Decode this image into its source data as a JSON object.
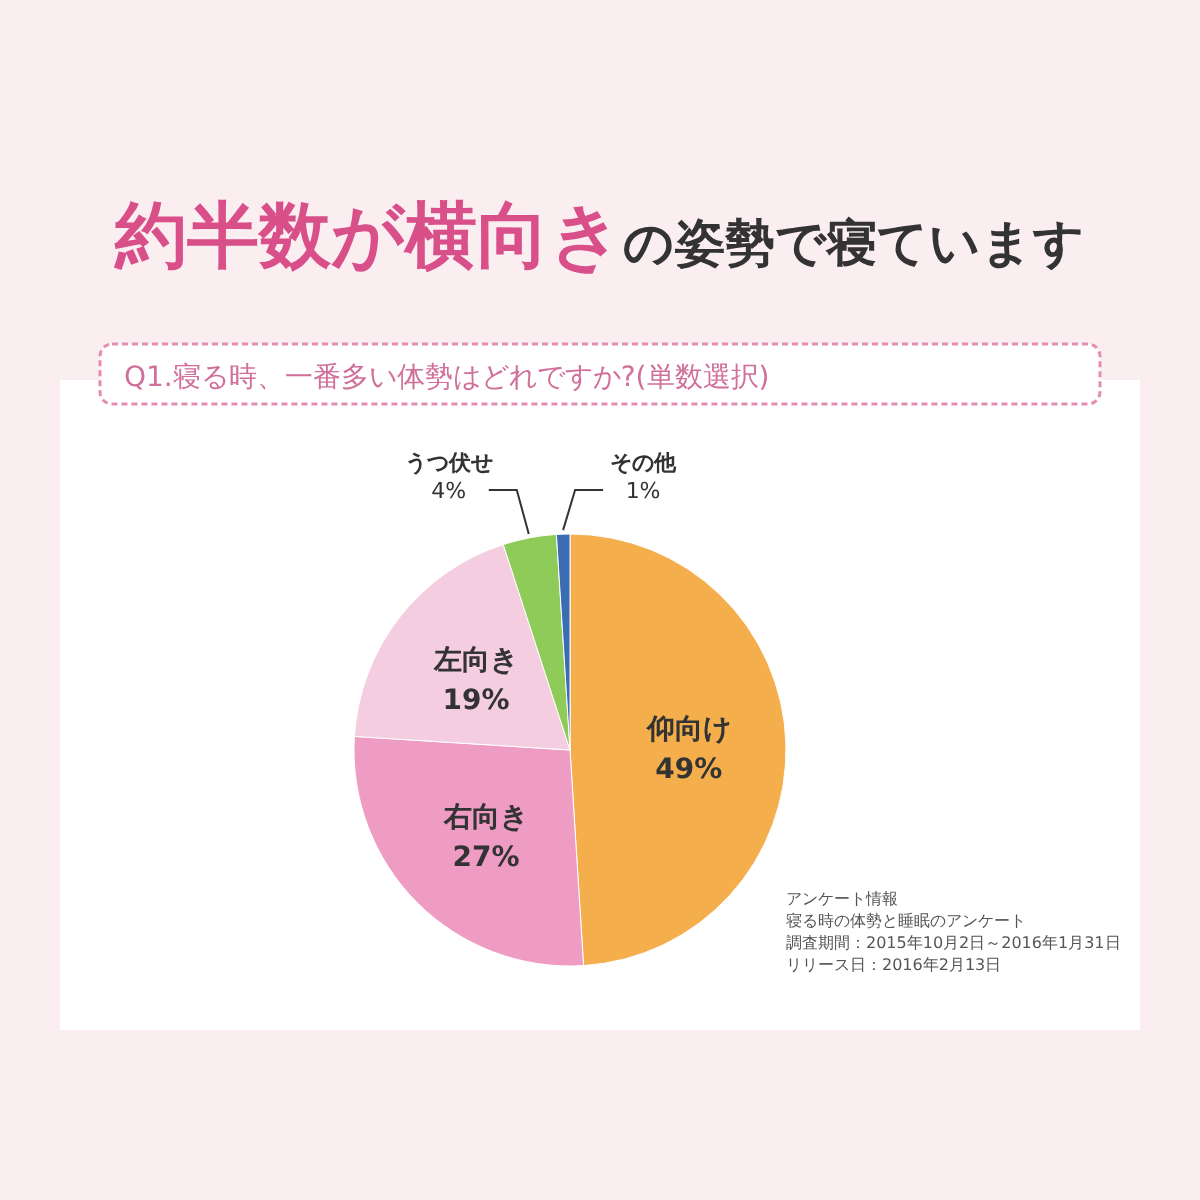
{
  "chart_data": {
    "type": "pie",
    "title": "**約半数が横向き**の姿勢で寝ています",
    "subtitle": "Q1.寝る時、一番多い体勢はどれですか?(単数選択)",
    "categories": [
      "仰向け",
      "右向き",
      "左向き",
      "うつ伏せ",
      "その他"
    ],
    "values": [
      49,
      27,
      19,
      4,
      1
    ],
    "colors": [
      "#f4ae4c",
      "#ee9cc3",
      "#f5cde0",
      "#8ecb58",
      "#3a6db3"
    ],
    "value_labels": [
      "49%",
      "27%",
      "19%",
      "4%",
      "1%"
    ],
    "annotations": [
      "アンケート情報",
      "寝る時の体勢と睡眠のアンケート",
      "調査期間：2015年10月2日～2016年1月31日",
      "リリース日：2016年2月13日"
    ]
  }
}
